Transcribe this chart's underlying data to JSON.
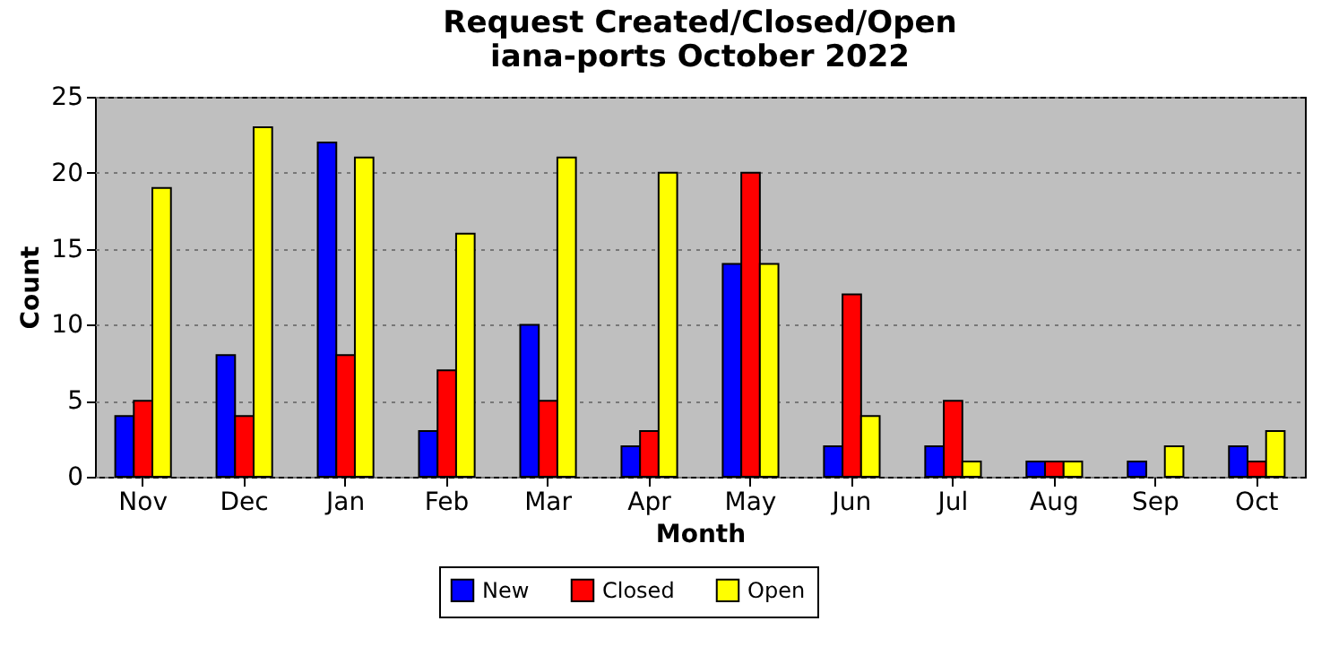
{
  "chart_data": {
    "type": "bar",
    "title": "Request Created/Closed/Open",
    "subtitle": "iana-ports October 2022",
    "xlabel": "Month",
    "ylabel": "Count",
    "categories": [
      "Nov",
      "Dec",
      "Jan",
      "Feb",
      "Mar",
      "Apr",
      "May",
      "Jun",
      "Jul",
      "Aug",
      "Sep",
      "Oct"
    ],
    "series": [
      {
        "name": "New",
        "color": "#0000ff",
        "values": [
          4,
          8,
          22,
          3,
          10,
          2,
          14,
          2,
          2,
          1,
          1,
          2
        ]
      },
      {
        "name": "Closed",
        "color": "#ff0000",
        "values": [
          5,
          4,
          8,
          7,
          5,
          3,
          20,
          12,
          5,
          1,
          0,
          1
        ]
      },
      {
        "name": "Open",
        "color": "#ffff00",
        "values": [
          19,
          23,
          21,
          16,
          21,
          20,
          14,
          4,
          1,
          1,
          2,
          3
        ]
      }
    ],
    "ylim": [
      0,
      25
    ],
    "yticks": [
      0,
      5,
      10,
      15,
      20,
      25
    ],
    "grid": "y",
    "legend": "bottom"
  }
}
